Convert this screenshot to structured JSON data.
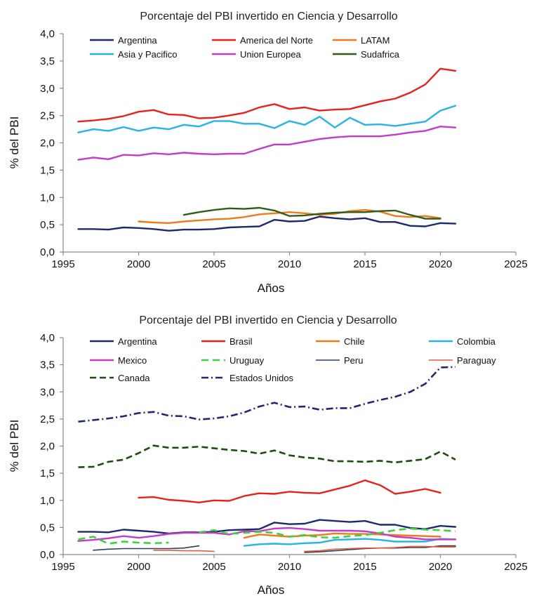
{
  "chart_data": [
    {
      "type": "line",
      "title": "Porcentaje del PBI invertido en Ciencia y Desarrollo",
      "xlabel": "Años",
      "ylabel": "% del PBI",
      "xlim": [
        1995,
        2025
      ],
      "ylim": [
        0,
        4
      ],
      "xticks": [
        "1995",
        "2000",
        "2005",
        "2010",
        "2015",
        "2020",
        "2025"
      ],
      "yticks": [
        "0,0",
        "0,5",
        "1,0",
        "1,5",
        "2,0",
        "2,5",
        "3,0",
        "3,5",
        "4,0"
      ],
      "grid": false,
      "legend_position": "top",
      "series": [
        {
          "name": "Argentina",
          "color": "#1f2a6e",
          "dash": "solid",
          "x": [
            1996,
            1997,
            1998,
            1999,
            2000,
            2001,
            2002,
            2003,
            2004,
            2005,
            2006,
            2007,
            2008,
            2009,
            2010,
            2011,
            2012,
            2013,
            2014,
            2015,
            2016,
            2017,
            2018,
            2019,
            2020,
            2021
          ],
          "y": [
            0.42,
            0.42,
            0.41,
            0.45,
            0.44,
            0.42,
            0.39,
            0.41,
            0.41,
            0.42,
            0.45,
            0.46,
            0.47,
            0.59,
            0.56,
            0.57,
            0.65,
            0.62,
            0.6,
            0.62,
            0.55,
            0.55,
            0.48,
            0.47,
            0.53,
            0.52
          ]
        },
        {
          "name": "America del Norte",
          "color": "#e8211b",
          "dash": "solid",
          "x": [
            1996,
            1997,
            1998,
            1999,
            2000,
            2001,
            2002,
            2003,
            2004,
            2005,
            2006,
            2007,
            2008,
            2009,
            2010,
            2011,
            2012,
            2013,
            2014,
            2015,
            2016,
            2017,
            2018,
            2019,
            2020,
            2021
          ],
          "y": [
            2.39,
            2.41,
            2.44,
            2.49,
            2.57,
            2.6,
            2.52,
            2.51,
            2.45,
            2.46,
            2.5,
            2.55,
            2.65,
            2.71,
            2.62,
            2.65,
            2.59,
            2.61,
            2.62,
            2.69,
            2.76,
            2.81,
            2.92,
            3.07,
            3.36,
            3.32
          ]
        },
        {
          "name": "LATAM",
          "color": "#f07a1a",
          "dash": "solid",
          "x": [
            2000,
            2001,
            2002,
            2003,
            2004,
            2005,
            2006,
            2007,
            2008,
            2009,
            2010,
            2011,
            2012,
            2013,
            2014,
            2015,
            2016,
            2017,
            2018,
            2019,
            2020
          ],
          "y": [
            0.56,
            0.54,
            0.53,
            0.56,
            0.58,
            0.6,
            0.61,
            0.64,
            0.69,
            0.71,
            0.73,
            0.71,
            0.68,
            0.7,
            0.75,
            0.77,
            0.74,
            0.66,
            0.64,
            0.66,
            0.62
          ]
        },
        {
          "name": "Asia y Pacifico",
          "color": "#25b3e8",
          "dash": "solid",
          "x": [
            1996,
            1997,
            1998,
            1999,
            2000,
            2001,
            2002,
            2003,
            2004,
            2005,
            2006,
            2007,
            2008,
            2009,
            2010,
            2011,
            2012,
            2013,
            2014,
            2015,
            2016,
            2017,
            2018,
            2019,
            2020,
            2021
          ],
          "y": [
            2.19,
            2.25,
            2.22,
            2.29,
            2.22,
            2.28,
            2.25,
            2.33,
            2.3,
            2.4,
            2.4,
            2.35,
            2.35,
            2.27,
            2.4,
            2.33,
            2.48,
            2.28,
            2.46,
            2.33,
            2.34,
            2.31,
            2.35,
            2.39,
            2.59,
            2.68
          ]
        },
        {
          "name": "Union Europea",
          "color": "#c43ac9",
          "dash": "solid",
          "x": [
            1996,
            1997,
            1998,
            1999,
            2000,
            2001,
            2002,
            2003,
            2004,
            2005,
            2006,
            2007,
            2008,
            2009,
            2010,
            2011,
            2012,
            2013,
            2014,
            2015,
            2016,
            2017,
            2018,
            2019,
            2020,
            2021
          ],
          "y": [
            1.69,
            1.73,
            1.7,
            1.78,
            1.77,
            1.81,
            1.79,
            1.82,
            1.8,
            1.79,
            1.8,
            1.8,
            1.89,
            1.97,
            1.97,
            2.02,
            2.07,
            2.1,
            2.12,
            2.12,
            2.12,
            2.15,
            2.19,
            2.22,
            2.3,
            2.28
          ]
        },
        {
          "name": "Sudafrica",
          "color": "#2e5e1a",
          "dash": "solid",
          "x": [
            2003,
            2004,
            2005,
            2006,
            2007,
            2008,
            2009,
            2010,
            2011,
            2012,
            2013,
            2014,
            2015,
            2016,
            2017,
            2018,
            2019,
            2020
          ],
          "y": [
            0.68,
            0.73,
            0.77,
            0.8,
            0.79,
            0.81,
            0.76,
            0.66,
            0.67,
            0.7,
            0.72,
            0.73,
            0.73,
            0.75,
            0.76,
            0.68,
            0.61,
            0.61
          ]
        }
      ]
    },
    {
      "type": "line",
      "title": "Porcentaje del PBI invertido en Ciencia y Desarrollo",
      "xlabel": "Años",
      "ylabel": "% del PBI",
      "xlim": [
        1995,
        2025
      ],
      "ylim": [
        0,
        4
      ],
      "xticks": [
        "1995",
        "2000",
        "2005",
        "2010",
        "2015",
        "2020",
        "2025"
      ],
      "yticks": [
        "0,0",
        "0,5",
        "1,0",
        "1,5",
        "2,0",
        "2,5",
        "3,0",
        "3,5",
        "4,0"
      ],
      "grid": false,
      "legend_position": "top",
      "series": [
        {
          "name": "Argentina",
          "color": "#1f2a6e",
          "dash": "solid",
          "x": [
            1996,
            1997,
            1998,
            1999,
            2000,
            2001,
            2002,
            2003,
            2004,
            2005,
            2006,
            2007,
            2008,
            2009,
            2010,
            2011,
            2012,
            2013,
            2014,
            2015,
            2016,
            2017,
            2018,
            2019,
            2020,
            2021
          ],
          "y": [
            0.42,
            0.42,
            0.41,
            0.46,
            0.44,
            0.42,
            0.39,
            0.41,
            0.41,
            0.42,
            0.45,
            0.46,
            0.47,
            0.59,
            0.56,
            0.57,
            0.64,
            0.62,
            0.6,
            0.62,
            0.55,
            0.55,
            0.49,
            0.47,
            0.53,
            0.51
          ]
        },
        {
          "name": "Brasil",
          "color": "#e8211b",
          "dash": "solid",
          "x": [
            2000,
            2001,
            2002,
            2003,
            2004,
            2005,
            2006,
            2007,
            2008,
            2009,
            2010,
            2011,
            2012,
            2013,
            2014,
            2015,
            2016,
            2017,
            2018,
            2019,
            2020
          ],
          "y": [
            1.05,
            1.06,
            1.01,
            0.99,
            0.96,
            1.0,
            0.99,
            1.08,
            1.13,
            1.12,
            1.16,
            1.14,
            1.13,
            1.2,
            1.27,
            1.37,
            1.28,
            1.12,
            1.16,
            1.21,
            1.14
          ]
        },
        {
          "name": "Chile",
          "color": "#f07a1a",
          "dash": "solid",
          "x": [
            2007,
            2008,
            2009,
            2010,
            2011,
            2012,
            2013,
            2014,
            2015,
            2016,
            2017,
            2018,
            2019,
            2020
          ],
          "y": [
            0.31,
            0.37,
            0.35,
            0.33,
            0.35,
            0.36,
            0.39,
            0.38,
            0.38,
            0.37,
            0.36,
            0.35,
            0.34,
            0.33
          ]
        },
        {
          "name": "Colombia",
          "color": "#25b3e8",
          "dash": "solid",
          "x": [
            2007,
            2008,
            2009,
            2010,
            2011,
            2012,
            2013,
            2014,
            2015,
            2016,
            2017,
            2018,
            2019,
            2020,
            2021
          ],
          "y": [
            0.16,
            0.19,
            0.2,
            0.19,
            0.21,
            0.22,
            0.27,
            0.28,
            0.29,
            0.27,
            0.24,
            0.24,
            0.24,
            0.29,
            0.28
          ]
        },
        {
          "name": "Mexico",
          "color": "#c43ac9",
          "dash": "solid",
          "x": [
            1996,
            1997,
            1998,
            1999,
            2000,
            2001,
            2002,
            2003,
            2004,
            2005,
            2006,
            2007,
            2008,
            2009,
            2010,
            2011,
            2012,
            2013,
            2014,
            2015,
            2016,
            2017,
            2018,
            2019,
            2020,
            2021
          ],
          "y": [
            0.25,
            0.27,
            0.3,
            0.34,
            0.31,
            0.34,
            0.38,
            0.4,
            0.4,
            0.4,
            0.37,
            0.43,
            0.43,
            0.48,
            0.49,
            0.47,
            0.44,
            0.44,
            0.44,
            0.43,
            0.39,
            0.33,
            0.31,
            0.28,
            0.28,
            0.28
          ]
        },
        {
          "name": "Uruguay",
          "color": "#3dd13d",
          "dash": "dashed",
          "x": [
            1996,
            1997,
            1998,
            1999,
            2000,
            2001,
            2002,
            2004,
            2005,
            2006,
            2007,
            2008,
            2009,
            2010,
            2011,
            2012,
            2013,
            2014,
            2015,
            2016,
            2017,
            2018,
            2019,
            2020,
            2021
          ],
          "y": [
            0.28,
            0.33,
            0.2,
            0.24,
            0.22,
            0.21,
            0.22,
            0.41,
            0.45,
            0.38,
            0.4,
            0.42,
            0.4,
            0.33,
            0.36,
            0.32,
            0.31,
            0.34,
            0.36,
            0.4,
            0.45,
            0.48,
            0.46,
            0.45,
            0.43
          ]
        },
        {
          "name": "Peru",
          "color": "#2c3e66",
          "dash": "solid",
          "x": [
            1997,
            1998,
            1999,
            2000,
            2001,
            2002,
            2003,
            2004,
            2011,
            2012,
            2013,
            2014,
            2015,
            2016,
            2017,
            2018,
            2019,
            2020,
            2021
          ],
          "y": [
            0.08,
            0.1,
            0.11,
            0.11,
            0.11,
            0.11,
            0.12,
            0.16,
            0.04,
            0.05,
            0.07,
            0.09,
            0.11,
            0.12,
            0.12,
            0.13,
            0.13,
            0.16,
            0.16
          ]
        },
        {
          "name": "Paraguay",
          "color": "#e85a3a",
          "dash": "solid",
          "x": [
            2001,
            2002,
            2003,
            2004,
            2005,
            2011,
            2012,
            2013,
            2014,
            2015,
            2016,
            2017,
            2018,
            2019,
            2020,
            2021
          ],
          "y": [
            0.08,
            0.08,
            0.07,
            0.07,
            0.06,
            0.06,
            0.07,
            0.1,
            0.11,
            0.12,
            0.12,
            0.13,
            0.15,
            0.15,
            0.14,
            0.14
          ]
        },
        {
          "name": "Canada",
          "color": "#1e4d14",
          "dash": "longdash",
          "x": [
            1996,
            1997,
            1998,
            1999,
            2000,
            2001,
            2002,
            2003,
            2004,
            2005,
            2006,
            2007,
            2008,
            2009,
            2010,
            2011,
            2012,
            2013,
            2014,
            2015,
            2016,
            2017,
            2018,
            2019,
            2020,
            2021
          ],
          "y": [
            1.61,
            1.62,
            1.71,
            1.75,
            1.87,
            2.01,
            1.97,
            1.97,
            1.99,
            1.96,
            1.93,
            1.91,
            1.86,
            1.92,
            1.83,
            1.79,
            1.77,
            1.72,
            1.72,
            1.71,
            1.73,
            1.7,
            1.73,
            1.76,
            1.9,
            1.75
          ]
        },
        {
          "name": "Estados Unidos",
          "color": "#1f2a6e",
          "dash": "dashdot",
          "x": [
            1996,
            1997,
            1998,
            1999,
            2000,
            2001,
            2002,
            2003,
            2004,
            2005,
            2006,
            2007,
            2008,
            2009,
            2010,
            2011,
            2012,
            2013,
            2014,
            2015,
            2016,
            2017,
            2018,
            2019,
            2020,
            2021
          ],
          "y": [
            2.45,
            2.48,
            2.51,
            2.55,
            2.61,
            2.63,
            2.56,
            2.55,
            2.49,
            2.51,
            2.55,
            2.62,
            2.73,
            2.8,
            2.72,
            2.73,
            2.67,
            2.7,
            2.7,
            2.78,
            2.85,
            2.91,
            3.0,
            3.15,
            3.45,
            3.46
          ]
        }
      ]
    }
  ]
}
